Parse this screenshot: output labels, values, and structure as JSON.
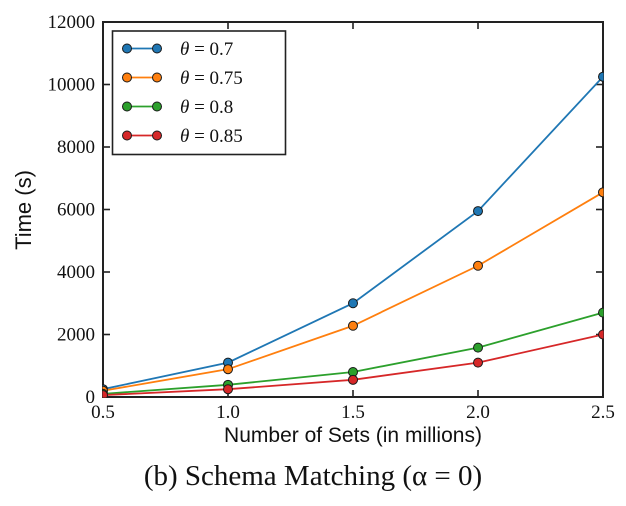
{
  "chart_data": {
    "type": "line",
    "title": "",
    "xlabel": "Number of Sets (in millions)",
    "ylabel": "Time (s)",
    "caption": "(b) Schema Matching (α = 0)",
    "x": [
      0.5,
      1.0,
      1.5,
      2.0,
      2.5
    ],
    "xlim": [
      0.5,
      2.5
    ],
    "ylim": [
      0,
      12000
    ],
    "xticks": [
      {
        "value": 0.5,
        "label": "0.5"
      },
      {
        "value": 1.0,
        "label": "1.0"
      },
      {
        "value": 1.5,
        "label": "1.5"
      },
      {
        "value": 2.0,
        "label": "2.0"
      },
      {
        "value": 2.5,
        "label": "2.5"
      }
    ],
    "yticks": [
      {
        "value": 0,
        "label": "0"
      },
      {
        "value": 2000,
        "label": "2000"
      },
      {
        "value": 4000,
        "label": "4000"
      },
      {
        "value": 6000,
        "label": "6000"
      },
      {
        "value": 8000,
        "label": "8000"
      },
      {
        "value": 10000,
        "label": "10000"
      },
      {
        "value": 12000,
        "label": "12000"
      }
    ],
    "grid": false,
    "legend_position": "upper left",
    "marker": "circle",
    "marker_edge_color": "#1a1a1a",
    "axis_color": "#222222",
    "series": [
      {
        "name": "θ = 0.7",
        "color": "#1f77b4",
        "values": [
          250,
          1100,
          3000,
          5950,
          10250
        ]
      },
      {
        "name": "θ = 0.75",
        "color": "#ff7f0e",
        "values": [
          200,
          890,
          2280,
          4200,
          6550
        ]
      },
      {
        "name": "θ = 0.8",
        "color": "#2ca02c",
        "values": [
          100,
          390,
          800,
          1580,
          2700
        ]
      },
      {
        "name": "θ = 0.85",
        "color": "#d62728",
        "values": [
          60,
          250,
          550,
          1100,
          2000
        ]
      }
    ]
  }
}
